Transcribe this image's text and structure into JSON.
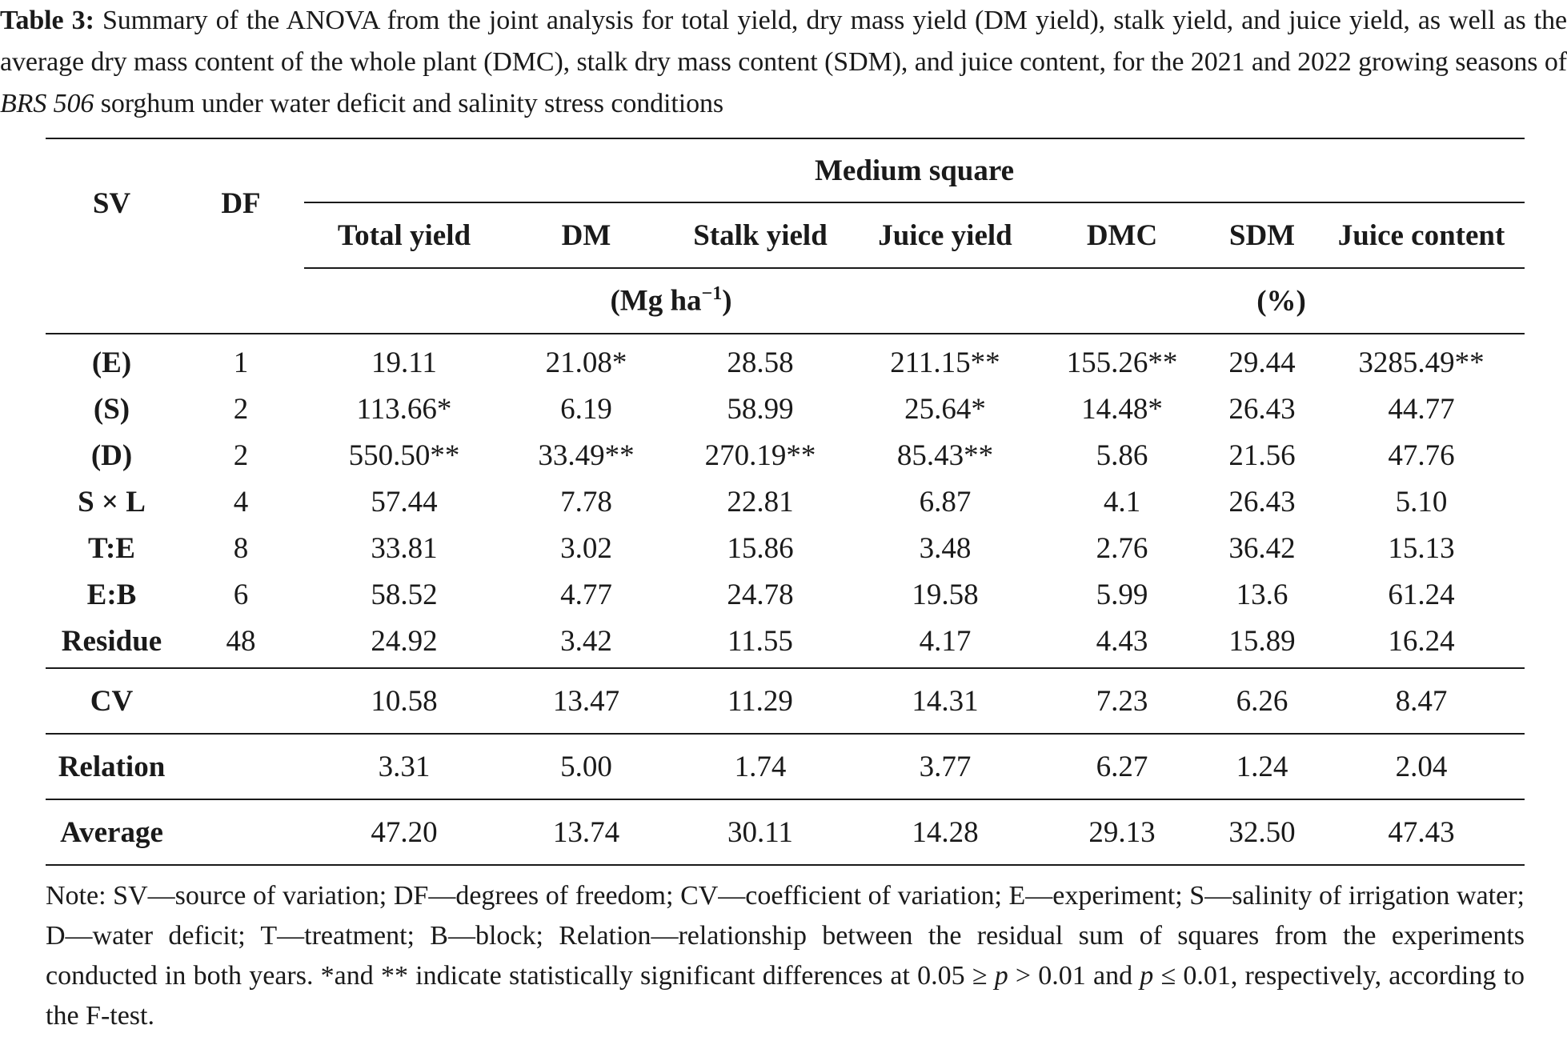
{
  "caption": {
    "label": "Table 3:",
    "text_before_italic": " Summary of the ANOVA from the joint analysis for total yield, dry mass yield (DM yield), stalk yield, and juice yield, as well as the average dry mass content of the whole plant (DMC), stalk dry mass content (SDM), and juice content, for the 2021 and 2022 growing seasons of ",
    "italic": "BRS 506",
    "text_after_italic": " sorghum under water deficit and salinity stress conditions"
  },
  "table": {
    "col_sv": "SV",
    "col_df": "DF",
    "group_header": "Medium square",
    "columns": [
      "Total yield",
      "DM",
      "Stalk yield",
      "Juice yield",
      "DMC",
      "SDM",
      "Juice content"
    ],
    "unit_mass": "(Mg ha",
    "unit_mass_exp": "−1",
    "unit_mass_close": ")",
    "unit_percent": "(%)",
    "rows": [
      {
        "sv": "(E)",
        "df": "1",
        "values": [
          "19.11",
          "21.08*",
          "28.58",
          "211.15**",
          "155.26**",
          "29.44",
          "3285.49**"
        ]
      },
      {
        "sv": "(S)",
        "df": "2",
        "values": [
          "113.66*",
          "6.19",
          "58.99",
          "25.64*",
          "14.48*",
          "26.43",
          "44.77"
        ]
      },
      {
        "sv": "(D)",
        "df": "2",
        "values": [
          "550.50**",
          "33.49**",
          "270.19**",
          "85.43**",
          "5.86",
          "21.56",
          "47.76"
        ]
      },
      {
        "sv": "S × L",
        "df": "4",
        "values": [
          "57.44",
          "7.78",
          "22.81",
          "6.87",
          "4.1",
          "26.43",
          "5.10"
        ]
      },
      {
        "sv": "T:E",
        "df": "8",
        "values": [
          "33.81",
          "3.02",
          "15.86",
          "3.48",
          "2.76",
          "36.42",
          "15.13"
        ]
      },
      {
        "sv": "E:B",
        "df": "6",
        "values": [
          "58.52",
          "4.77",
          "24.78",
          "19.58",
          "5.99",
          "13.6",
          "61.24"
        ]
      },
      {
        "sv": "Residue",
        "df": "48",
        "values": [
          "24.92",
          "3.42",
          "11.55",
          "4.17",
          "4.43",
          "15.89",
          "16.24"
        ]
      }
    ],
    "stats": [
      {
        "sv": "CV",
        "df": "",
        "values": [
          "10.58",
          "13.47",
          "11.29",
          "14.31",
          "7.23",
          "6.26",
          "8.47"
        ]
      },
      {
        "sv": "Relation",
        "df": "",
        "values": [
          "3.31",
          "5.00",
          "1.74",
          "3.77",
          "6.27",
          "1.24",
          "2.04"
        ]
      },
      {
        "sv": "Average",
        "df": "",
        "values": [
          "47.20",
          "13.74",
          "30.11",
          "14.28",
          "29.13",
          "32.50",
          "47.43"
        ]
      }
    ]
  },
  "note": {
    "part1": "Note: SV—source of variation; DF—degrees of freedom; CV—coefficient of variation; E—experiment; S—salinity of irrigation water; D—water deficit; T—treatment; B—block; Relation—relationship between the residual sum of squares from the experiments conducted in both years. *and ** indicate statistically significant differences at 0.05 ≥ ",
    "p1": "p",
    "part2": " > 0.01 and ",
    "p2": "p",
    "part3": " ≤ 0.01, respectively, according to the F-test."
  }
}
